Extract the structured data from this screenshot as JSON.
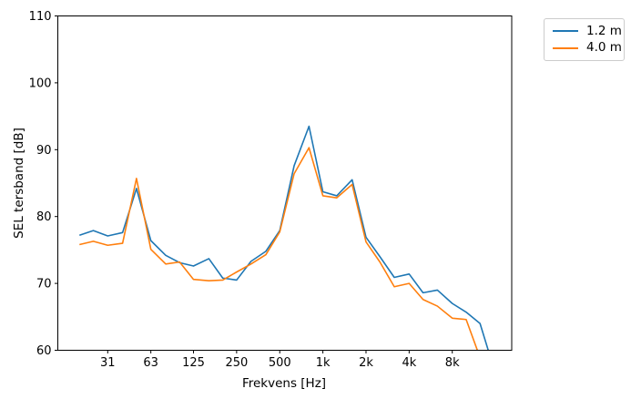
{
  "chart_data": {
    "type": "line",
    "title": "",
    "xlabel": "Frekvens [Hz]",
    "ylabel": "SEL tersband [dB]",
    "x_scale": "log-octave",
    "grid": false,
    "legend_position": "outside-upper-right",
    "ylim": [
      60,
      110
    ],
    "y_ticks": [
      60,
      70,
      80,
      90,
      100,
      110
    ],
    "x_tick_values": [
      31.5,
      63,
      125,
      250,
      500,
      1000,
      2000,
      4000,
      8000
    ],
    "x_tick_labels": [
      "31",
      "63",
      "125",
      "250",
      "500",
      "1k",
      "2k",
      "4k",
      "8k"
    ],
    "frequencies_hz": [
      20,
      25,
      31.5,
      40,
      50,
      63,
      80,
      100,
      125,
      160,
      200,
      250,
      315,
      400,
      500,
      630,
      800,
      1000,
      1250,
      1600,
      2000,
      2500,
      3150,
      4000,
      5000,
      6300,
      8000,
      10000,
      12500,
      16000
    ],
    "series": [
      {
        "name": "1.2 m",
        "color": "#1f77b4",
        "values": [
          77.2,
          77.9,
          77.1,
          77.6,
          84.2,
          76.4,
          74.2,
          73.1,
          72.6,
          73.7,
          70.8,
          70.5,
          73.3,
          74.8,
          77.9,
          87.6,
          93.5,
          83.7,
          83.1,
          85.5,
          76.9,
          74.0,
          70.9,
          71.4,
          68.6,
          69.0,
          67.0,
          65.7,
          64.0,
          56.5
        ]
      },
      {
        "name": "4.0 m",
        "color": "#ff7f0e",
        "values": [
          75.8,
          76.3,
          75.7,
          76.0,
          85.7,
          75.1,
          72.9,
          73.2,
          70.6,
          70.4,
          70.5,
          71.7,
          72.9,
          74.3,
          77.7,
          86.4,
          90.3,
          83.1,
          82.8,
          84.8,
          76.2,
          73.2,
          69.5,
          70.0,
          67.6,
          66.6,
          64.8,
          64.6,
          58.9,
          54.0
        ]
      }
    ]
  }
}
